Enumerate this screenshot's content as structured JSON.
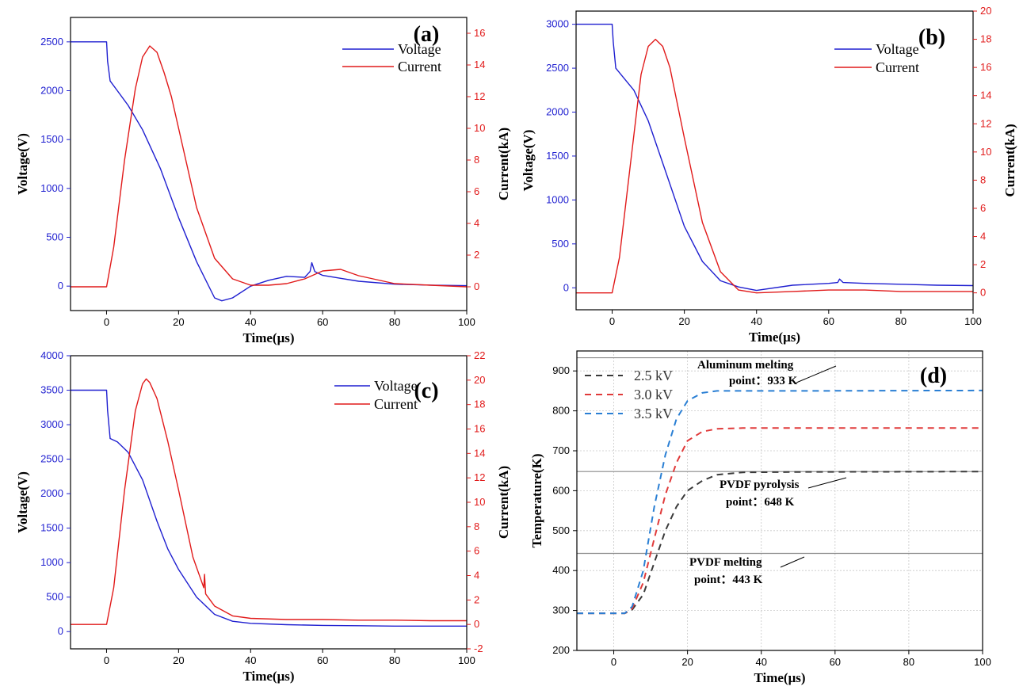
{
  "colors": {
    "voltage": "#1f1fd0",
    "current": "#e11a1a",
    "t25": "#3a3a3a",
    "t30": "#e03a3a",
    "t35": "#2a7fd4",
    "ref": "#8a8a8a",
    "axis_left": "#1f1fd0",
    "axis_right": "#e11a1a"
  },
  "chart_data": [
    {
      "type": "line",
      "label": "(a)",
      "xlabel": "Time(μs)",
      "ylabel": "Voltage(V)",
      "y2label": "Current(kA)",
      "xlim": [
        -10,
        100
      ],
      "ylim": [
        -250,
        2750
      ],
      "y2lim": [
        -1.5,
        17
      ],
      "xticks": [
        0,
        20,
        40,
        60,
        80,
        100
      ],
      "yticks": [
        0,
        500,
        1000,
        1500,
        2000,
        2500
      ],
      "y2ticks": [
        0,
        2,
        4,
        6,
        8,
        10,
        12,
        14,
        16
      ],
      "legend_position": "top-right",
      "series": [
        {
          "name": "Voltage",
          "axis": "left",
          "x": [
            -10,
            0,
            0.3,
            1,
            3,
            6,
            10,
            15,
            20,
            25,
            30,
            32,
            35,
            40,
            45,
            50,
            55,
            56.5,
            57,
            57.8,
            60,
            65,
            70,
            80,
            90,
            100
          ],
          "y": [
            2500,
            2500,
            2300,
            2100,
            2000,
            1850,
            1600,
            1200,
            700,
            250,
            -120,
            -150,
            -120,
            0,
            60,
            100,
            90,
            150,
            240,
            150,
            110,
            80,
            50,
            20,
            10,
            5
          ]
        },
        {
          "name": "Current",
          "axis": "right",
          "x": [
            -10,
            0,
            2,
            5,
            8,
            10,
            12,
            14,
            16,
            18,
            20,
            25,
            30,
            35,
            40,
            45,
            50,
            55,
            60,
            65,
            70,
            80,
            90,
            100
          ],
          "y": [
            0,
            0,
            2.5,
            8,
            12.5,
            14.5,
            15.2,
            14.8,
            13.5,
            12,
            10,
            5,
            1.8,
            0.5,
            0.1,
            0.1,
            0.2,
            0.5,
            1.0,
            1.1,
            0.7,
            0.2,
            0.1,
            0
          ]
        }
      ]
    },
    {
      "type": "line",
      "label": "(b)",
      "xlabel": "Time(μs)",
      "ylabel": "Voltage(V)",
      "y2label": "Current(kA)",
      "xlim": [
        -10,
        100
      ],
      "ylim": [
        -250,
        3150
      ],
      "y2lim": [
        -1.2,
        20
      ],
      "xticks": [
        0,
        20,
        40,
        60,
        80,
        100
      ],
      "yticks": [
        0,
        500,
        1000,
        1500,
        2000,
        2500,
        3000
      ],
      "y2ticks": [
        0,
        2,
        4,
        6,
        8,
        10,
        12,
        14,
        16,
        18,
        20
      ],
      "legend_position": "top-right",
      "series": [
        {
          "name": "Voltage",
          "axis": "left",
          "x": [
            -10,
            0,
            0.3,
            1,
            3,
            6,
            10,
            15,
            20,
            25,
            30,
            35,
            40,
            50,
            60,
            62.5,
            63,
            64,
            70,
            80,
            90,
            100
          ],
          "y": [
            3000,
            3000,
            2800,
            2500,
            2400,
            2250,
            1900,
            1300,
            700,
            300,
            80,
            10,
            -30,
            30,
            50,
            60,
            100,
            60,
            50,
            40,
            30,
            25
          ]
        },
        {
          "name": "Current",
          "axis": "right",
          "x": [
            -10,
            0,
            2,
            5,
            8,
            10,
            12,
            14,
            16,
            18,
            20,
            25,
            30,
            35,
            40,
            50,
            60,
            70,
            80,
            90,
            100
          ],
          "y": [
            0,
            0,
            2.5,
            9,
            15.5,
            17.5,
            18,
            17.5,
            16,
            13.5,
            11,
            5,
            1.5,
            0.2,
            0,
            0.1,
            0.2,
            0.2,
            0.1,
            0.1,
            0.1
          ]
        }
      ]
    },
    {
      "type": "line",
      "label": "(c)",
      "xlabel": "Time(μs)",
      "ylabel": "Voltage(V)",
      "y2label": "Current(kA)",
      "xlim": [
        -10,
        100
      ],
      "ylim": [
        -250,
        4000
      ],
      "y2lim": [
        -2,
        22
      ],
      "xticks": [
        0,
        20,
        40,
        60,
        80,
        100
      ],
      "yticks": [
        0,
        500,
        1000,
        1500,
        2000,
        2500,
        3000,
        3500,
        4000
      ],
      "y2ticks": [
        -2,
        0,
        2,
        4,
        6,
        8,
        10,
        12,
        14,
        16,
        18,
        20,
        22
      ],
      "legend_position": "top-right",
      "series": [
        {
          "name": "Voltage",
          "axis": "left",
          "x": [
            -10,
            0,
            0.3,
            1,
            3,
            6,
            10,
            14,
            17,
            20,
            25,
            30,
            35,
            40,
            50,
            60,
            70,
            80,
            90,
            100
          ],
          "y": [
            3500,
            3500,
            3200,
            2800,
            2750,
            2600,
            2200,
            1600,
            1200,
            900,
            500,
            250,
            150,
            120,
            100,
            90,
            85,
            80,
            80,
            80
          ]
        },
        {
          "name": "Current",
          "axis": "right",
          "x": [
            -10,
            0,
            2,
            5,
            8,
            10,
            11,
            12,
            14,
            17,
            20,
            24,
            27,
            27.2,
            27.5,
            28,
            30,
            35,
            40,
            50,
            60,
            70,
            80,
            90,
            100
          ],
          "y": [
            0,
            0,
            3,
            11,
            17.5,
            19.7,
            20.1,
            19.8,
            18.5,
            15,
            11,
            5.5,
            3,
            4.1,
            2.5,
            2.3,
            1.5,
            0.7,
            0.5,
            0.4,
            0.4,
            0.35,
            0.35,
            0.3,
            0.3
          ]
        }
      ]
    },
    {
      "type": "line",
      "label": "(d)",
      "xlabel": "Time(μs)",
      "ylabel": "Temperature(K)",
      "xlim": [
        -10,
        100
      ],
      "ylim": [
        200,
        950
      ],
      "xticks": [
        0,
        20,
        40,
        60,
        80,
        100
      ],
      "yticks": [
        200,
        300,
        400,
        500,
        600,
        700,
        800,
        900
      ],
      "grid": true,
      "legend_position": "top-left",
      "series": [
        {
          "name": "2.5 kV",
          "x": [
            -10,
            3,
            5,
            8,
            11,
            14,
            17,
            20,
            24,
            28,
            35,
            50,
            100
          ],
          "y": [
            293,
            293,
            302,
            340,
            420,
            500,
            560,
            600,
            625,
            640,
            646,
            647,
            648
          ]
        },
        {
          "name": "3.0 kV",
          "x": [
            -10,
            3,
            5,
            8,
            11,
            14,
            17,
            20,
            24,
            28,
            35,
            50,
            100
          ],
          "y": [
            293,
            293,
            305,
            370,
            480,
            590,
            670,
            725,
            748,
            755,
            757,
            757,
            757
          ]
        },
        {
          "name": "3.5 kV",
          "x": [
            -10,
            3,
            5,
            8,
            11,
            14,
            17,
            20,
            24,
            28,
            35,
            50,
            100
          ],
          "y": [
            293,
            293,
            310,
            400,
            560,
            690,
            780,
            825,
            845,
            850,
            850,
            850,
            851
          ]
        }
      ],
      "reference_lines": [
        {
          "y": 933,
          "label_line1": "Aluminum melting",
          "label_line2": "point：933 K"
        },
        {
          "y": 648,
          "label_line1": "PVDF pyrolysis",
          "label_line2": "point：648 K"
        },
        {
          "y": 443,
          "label_line1": "PVDF melting",
          "label_line2": "point：443 K"
        }
      ]
    }
  ]
}
